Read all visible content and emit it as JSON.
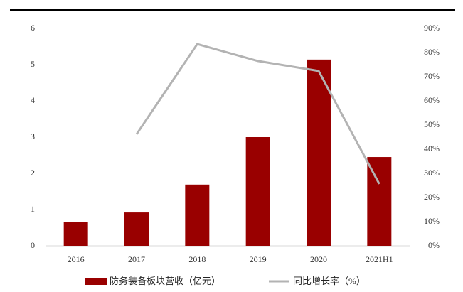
{
  "chart_data": {
    "type": "bar_line",
    "categories": [
      "2016",
      "2017",
      "2018",
      "2019",
      "2020",
      "2021H1"
    ],
    "series": [
      {
        "name": "防务装备板块营收（亿元）",
        "type": "bar",
        "color": "#990000",
        "values": [
          0.65,
          0.92,
          1.69,
          3.0,
          5.14,
          2.45
        ]
      },
      {
        "name": "同比增长率（%）",
        "type": "line",
        "axis": "y2",
        "color": "#b3b3b3",
        "values": [
          null,
          46.2,
          83.5,
          76.5,
          72.4,
          25.6
        ]
      }
    ],
    "ylim": [
      0,
      6
    ],
    "yticks": [
      0,
      1,
      2,
      3,
      4,
      5,
      6
    ],
    "y2lim": [
      0,
      90
    ],
    "y2ticks": [
      {
        "value": 0,
        "label": "0%"
      },
      {
        "value": 10,
        "label": "10%"
      },
      {
        "value": 20,
        "label": "20%"
      },
      {
        "value": 30,
        "label": "30%"
      },
      {
        "value": 40,
        "label": "40%"
      },
      {
        "value": 50,
        "label": "50%"
      },
      {
        "value": 60,
        "label": "60%"
      },
      {
        "value": 70,
        "label": "70%"
      },
      {
        "value": 80,
        "label": "80%"
      },
      {
        "value": 90,
        "label": "90%"
      }
    ],
    "grid": false
  }
}
